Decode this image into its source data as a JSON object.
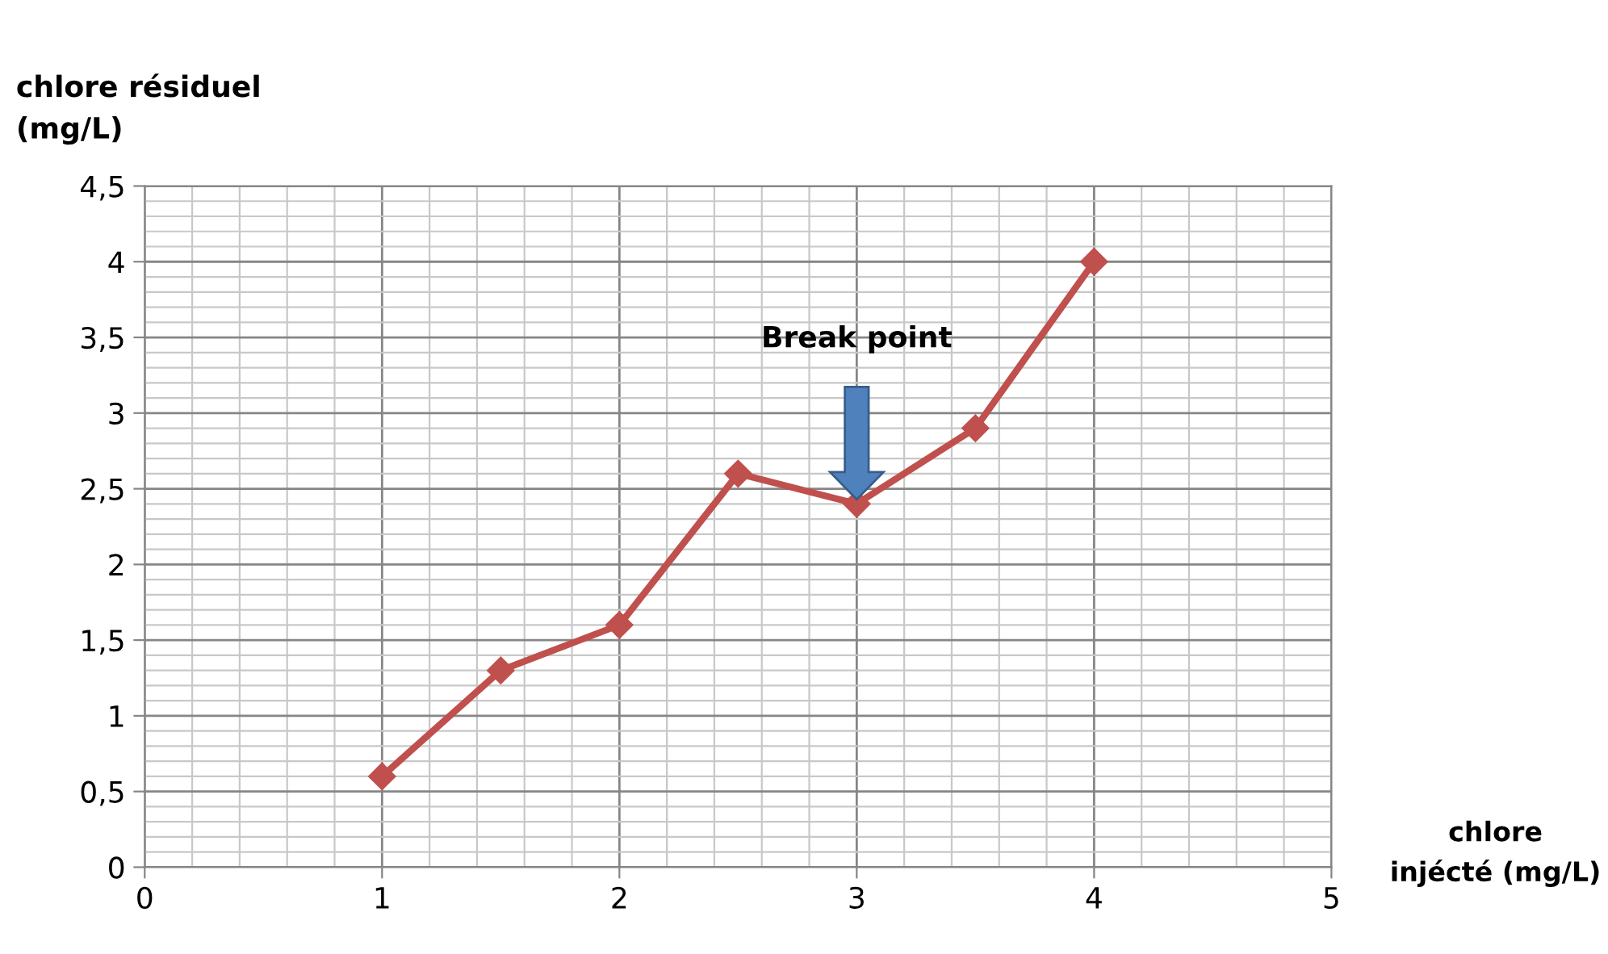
{
  "chart_data": {
    "type": "line",
    "xlabel": "chlore\ninjécté (mg/L)",
    "ylabel": "chlore résiduel\n(mg/L)",
    "x": [
      1,
      1.5,
      2,
      2.5,
      3,
      3.5,
      4
    ],
    "series": [
      {
        "color": "#c0504d",
        "values": [
          0.6,
          1.3,
          1.6,
          2.6,
          2.4,
          2.9,
          4.0
        ]
      }
    ],
    "marker": "diamond",
    "line_style": "solid",
    "grid": true,
    "xlim": [
      0,
      5
    ],
    "xticks": [
      0,
      1,
      2,
      3,
      4,
      5
    ],
    "ylim": [
      0,
      4.5
    ],
    "yticks": [
      0,
      {
        "value": 0.5,
        "label": "0,5"
      },
      1,
      {
        "value": 1.5,
        "label": "1,5"
      },
      2,
      {
        "value": 2.5,
        "label": "2,5"
      },
      3,
      {
        "value": 3.5,
        "label": "3,5"
      },
      4,
      {
        "value": 4.5,
        "label": "4,5"
      }
    ],
    "annotations": [
      "Break point"
    ]
  }
}
